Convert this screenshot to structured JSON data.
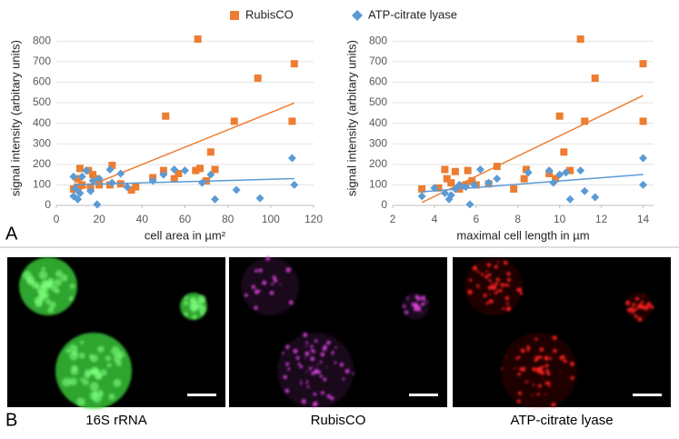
{
  "chart_data": [
    {
      "type": "scatter",
      "xlabel": "cell area in µm²",
      "ylabel": "signal intensity (arbitary units)",
      "xlim": [
        0,
        120
      ],
      "xticks": [
        0,
        20,
        40,
        60,
        80,
        100,
        120
      ],
      "ylim": [
        0,
        850
      ],
      "yticks": [
        0,
        100,
        200,
        300,
        400,
        500,
        600,
        700,
        800
      ],
      "grid": true,
      "trendline": true,
      "series": [
        {
          "name": "RubisCO",
          "color": "#ed7d31",
          "marker": "square",
          "x": [
            8,
            10,
            10,
            11,
            12,
            15,
            16,
            17,
            18,
            20,
            25,
            26,
            30,
            35,
            37,
            45,
            50,
            51,
            55,
            57,
            65,
            66,
            67,
            70,
            72,
            74,
            83,
            94,
            110,
            111
          ],
          "values": [
            80,
            90,
            130,
            180,
            100,
            170,
            90,
            150,
            130,
            100,
            100,
            195,
            105,
            75,
            90,
            135,
            170,
            435,
            130,
            155,
            170,
            810,
            180,
            120,
            260,
            175,
            410,
            620,
            410,
            690
          ]
        },
        {
          "name": "ATP-citrate lyase",
          "color": "#5b9bd5",
          "marker": "diamond",
          "x": [
            8,
            8,
            9,
            10,
            11,
            12,
            14,
            16,
            17,
            19,
            20,
            25,
            26,
            30,
            33,
            45,
            50,
            55,
            60,
            68,
            72,
            74,
            84,
            95,
            110,
            111
          ],
          "values": [
            45,
            140,
            80,
            30,
            60,
            140,
            170,
            70,
            120,
            5,
            130,
            175,
            110,
            155,
            90,
            120,
            150,
            175,
            170,
            110,
            150,
            30,
            75,
            35,
            230,
            100
          ]
        }
      ]
    },
    {
      "type": "scatter",
      "xlabel": "maximal cell length in µm",
      "ylabel": "signal intensity (arbitary units)",
      "xlim": [
        2,
        14.5
      ],
      "xticks": [
        2,
        4,
        6,
        8,
        10,
        12,
        14
      ],
      "ylim": [
        0,
        850
      ],
      "yticks": [
        0,
        100,
        200,
        300,
        400,
        500,
        600,
        700,
        800
      ],
      "grid": true,
      "trendline": true,
      "series": [
        {
          "color": "#ed7d31",
          "marker": "square",
          "x": [
            3.4,
            4.2,
            4.5,
            4.6,
            4.8,
            5,
            5.2,
            5.5,
            5.6,
            5.8,
            6,
            6.6,
            7,
            7.8,
            8.3,
            8.4,
            9.5,
            9.8,
            10,
            10.2,
            10.5,
            11,
            11.2,
            11.7,
            14,
            14
          ],
          "values": [
            80,
            85,
            175,
            130,
            110,
            165,
            80,
            100,
            170,
            120,
            100,
            105,
            190,
            80,
            130,
            175,
            155,
            130,
            435,
            260,
            170,
            810,
            410,
            620,
            690,
            410
          ]
        },
        {
          "color": "#5b9bd5",
          "marker": "diamond",
          "x": [
            3.4,
            4,
            4.5,
            4.7,
            4.8,
            5,
            5.2,
            5.5,
            5.7,
            5.9,
            6.2,
            6.6,
            7,
            8.5,
            9.5,
            9.7,
            10,
            10.3,
            10.5,
            11,
            11.2,
            11.7,
            14,
            14
          ],
          "values": [
            45,
            85,
            60,
            30,
            50,
            80,
            100,
            90,
            5,
            100,
            175,
            110,
            130,
            160,
            170,
            110,
            150,
            160,
            30,
            170,
            70,
            40,
            230,
            100
          ]
        }
      ]
    }
  ],
  "panel_labels": [
    "A",
    "B"
  ],
  "images": [
    {
      "label": "16S rRNA",
      "color": "#3ddc3d"
    },
    {
      "label": "RubisCO",
      "color": "#d040d8"
    },
    {
      "label": "ATP-citrate lyase",
      "color": "#ff2020"
    }
  ]
}
